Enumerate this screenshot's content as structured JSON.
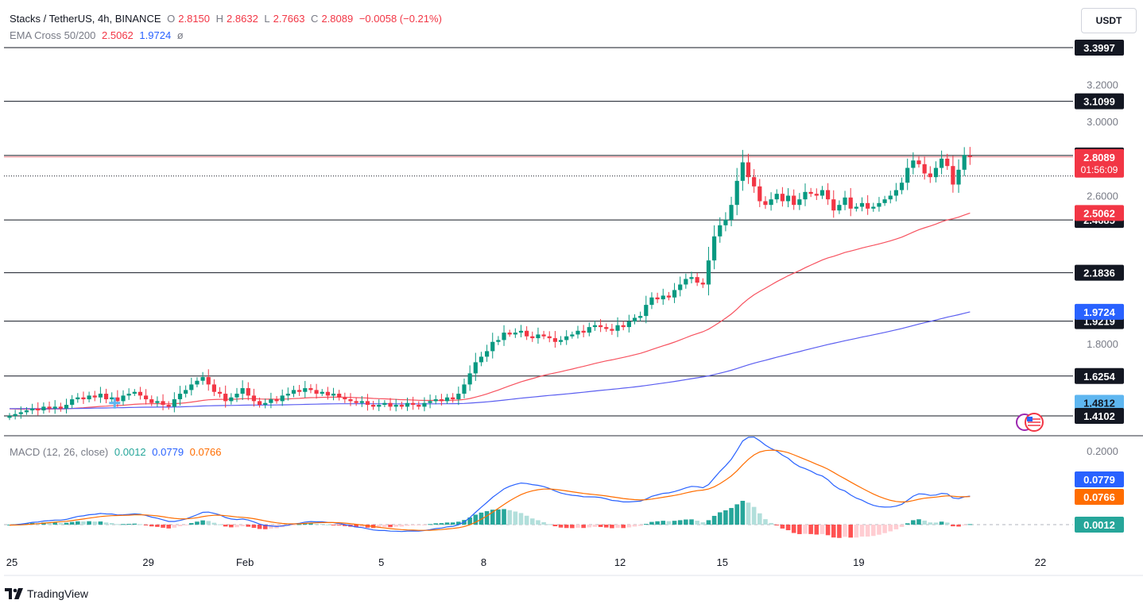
{
  "header": {
    "symbol": "Stacks / TetherUS, 4h, BINANCE",
    "o_label": "O",
    "o_value": "2.8150",
    "h_label": "H",
    "h_value": "2.8632",
    "l_label": "L",
    "l_value": "2.7663",
    "c_label": "C",
    "c_value": "2.8089",
    "change": "−0.0058 (−0.21%)"
  },
  "ema_legend": {
    "label": "EMA Cross 50/200",
    "v1": "2.5062",
    "v2": "1.9724",
    "icon": "ø"
  },
  "macd_legend": {
    "label": "MACD (12, 26, close)",
    "hist": "0.0012",
    "macd": "0.0779",
    "signal": "0.0766"
  },
  "currency_button": "USDT",
  "brand": "TradingView",
  "colors": {
    "up": "#089981",
    "down": "#f23645",
    "ema50": "#f7525f",
    "ema200": "#5b5ef0",
    "macd": "#2962ff",
    "signal": "#ff6d00",
    "hist_up_strong": "#26a69a",
    "hist_up_weak": "#b2dfdb",
    "hist_down_strong": "#ff5252",
    "hist_down_weak": "#ffcdd2"
  },
  "chart_data": [
    {
      "type": "candlestick",
      "title": "Stacks / TetherUS, 4h, BINANCE",
      "x_tick_labels": [
        {
          "label": "25",
          "bar": 0
        },
        {
          "label": "29",
          "bar": 24
        },
        {
          "label": "Feb",
          "bar": 41
        },
        {
          "label": "5",
          "bar": 65
        },
        {
          "label": "8",
          "bar": 83
        },
        {
          "label": "12",
          "bar": 107
        },
        {
          "label": "15",
          "bar": 125
        },
        {
          "label": "19",
          "bar": 149
        },
        {
          "label": "22",
          "bar": 167
        }
      ],
      "y_ticks": [
        "3.2000",
        "3.0000",
        "2.6000",
        "1.8000"
      ],
      "ylim": [
        1.37,
        3.47
      ],
      "closes": [
        1.41,
        1.42,
        1.43,
        1.44,
        1.45,
        1.44,
        1.46,
        1.45,
        1.46,
        1.45,
        1.47,
        1.5,
        1.51,
        1.5,
        1.52,
        1.51,
        1.53,
        1.5,
        1.51,
        1.49,
        1.52,
        1.53,
        1.54,
        1.52,
        1.5,
        1.48,
        1.49,
        1.47,
        1.46,
        1.5,
        1.53,
        1.55,
        1.58,
        1.6,
        1.62,
        1.58,
        1.54,
        1.53,
        1.49,
        1.51,
        1.53,
        1.56,
        1.52,
        1.49,
        1.47,
        1.48,
        1.5,
        1.49,
        1.52,
        1.53,
        1.55,
        1.54,
        1.56,
        1.55,
        1.53,
        1.54,
        1.52,
        1.53,
        1.51,
        1.5,
        1.49,
        1.48,
        1.49,
        1.47,
        1.46,
        1.47,
        1.48,
        1.46,
        1.47,
        1.46,
        1.48,
        1.47,
        1.46,
        1.48,
        1.49,
        1.5,
        1.49,
        1.51,
        1.5,
        1.53,
        1.58,
        1.64,
        1.7,
        1.73,
        1.76,
        1.81,
        1.82,
        1.86,
        1.85,
        1.86,
        1.87,
        1.84,
        1.83,
        1.85,
        1.84,
        1.83,
        1.81,
        1.82,
        1.84,
        1.85,
        1.87,
        1.86,
        1.89,
        1.9,
        1.89,
        1.88,
        1.87,
        1.9,
        1.89,
        1.92,
        1.94,
        1.95,
        2.01,
        2.05,
        2.04,
        2.06,
        2.05,
        2.09,
        2.12,
        2.15,
        2.16,
        2.13,
        2.12,
        2.25,
        2.38,
        2.44,
        2.47,
        2.55,
        2.68,
        2.78,
        2.7,
        2.65,
        2.57,
        2.55,
        2.58,
        2.61,
        2.57,
        2.6,
        2.55,
        2.58,
        2.62,
        2.61,
        2.6,
        2.63,
        2.58,
        2.52,
        2.55,
        2.59,
        2.53,
        2.54,
        2.56,
        2.53,
        2.54,
        2.56,
        2.58,
        2.6,
        2.63,
        2.67,
        2.75,
        2.79,
        2.77,
        2.72,
        2.7,
        2.75,
        2.8,
        2.76,
        2.66,
        2.74,
        2.82,
        2.8089
      ],
      "horizontal_levels": [
        "3.3997",
        "3.1099",
        "2.8173",
        "2.4685",
        "2.1836",
        "1.9219",
        "1.6254",
        "1.4812",
        "1.4102"
      ],
      "last_price": "2.8089",
      "countdown": "01:56:09",
      "ema50_value": "2.5062",
      "ema200_value": "1.9724"
    },
    {
      "type": "macd",
      "title": "MACD (12, 26, close)",
      "y_ticks": [
        "0.2000"
      ],
      "ylim": [
        -0.06,
        0.23
      ],
      "macd_label": "0.0779",
      "signal_label": "0.0766",
      "hist_label": "0.0012"
    }
  ]
}
